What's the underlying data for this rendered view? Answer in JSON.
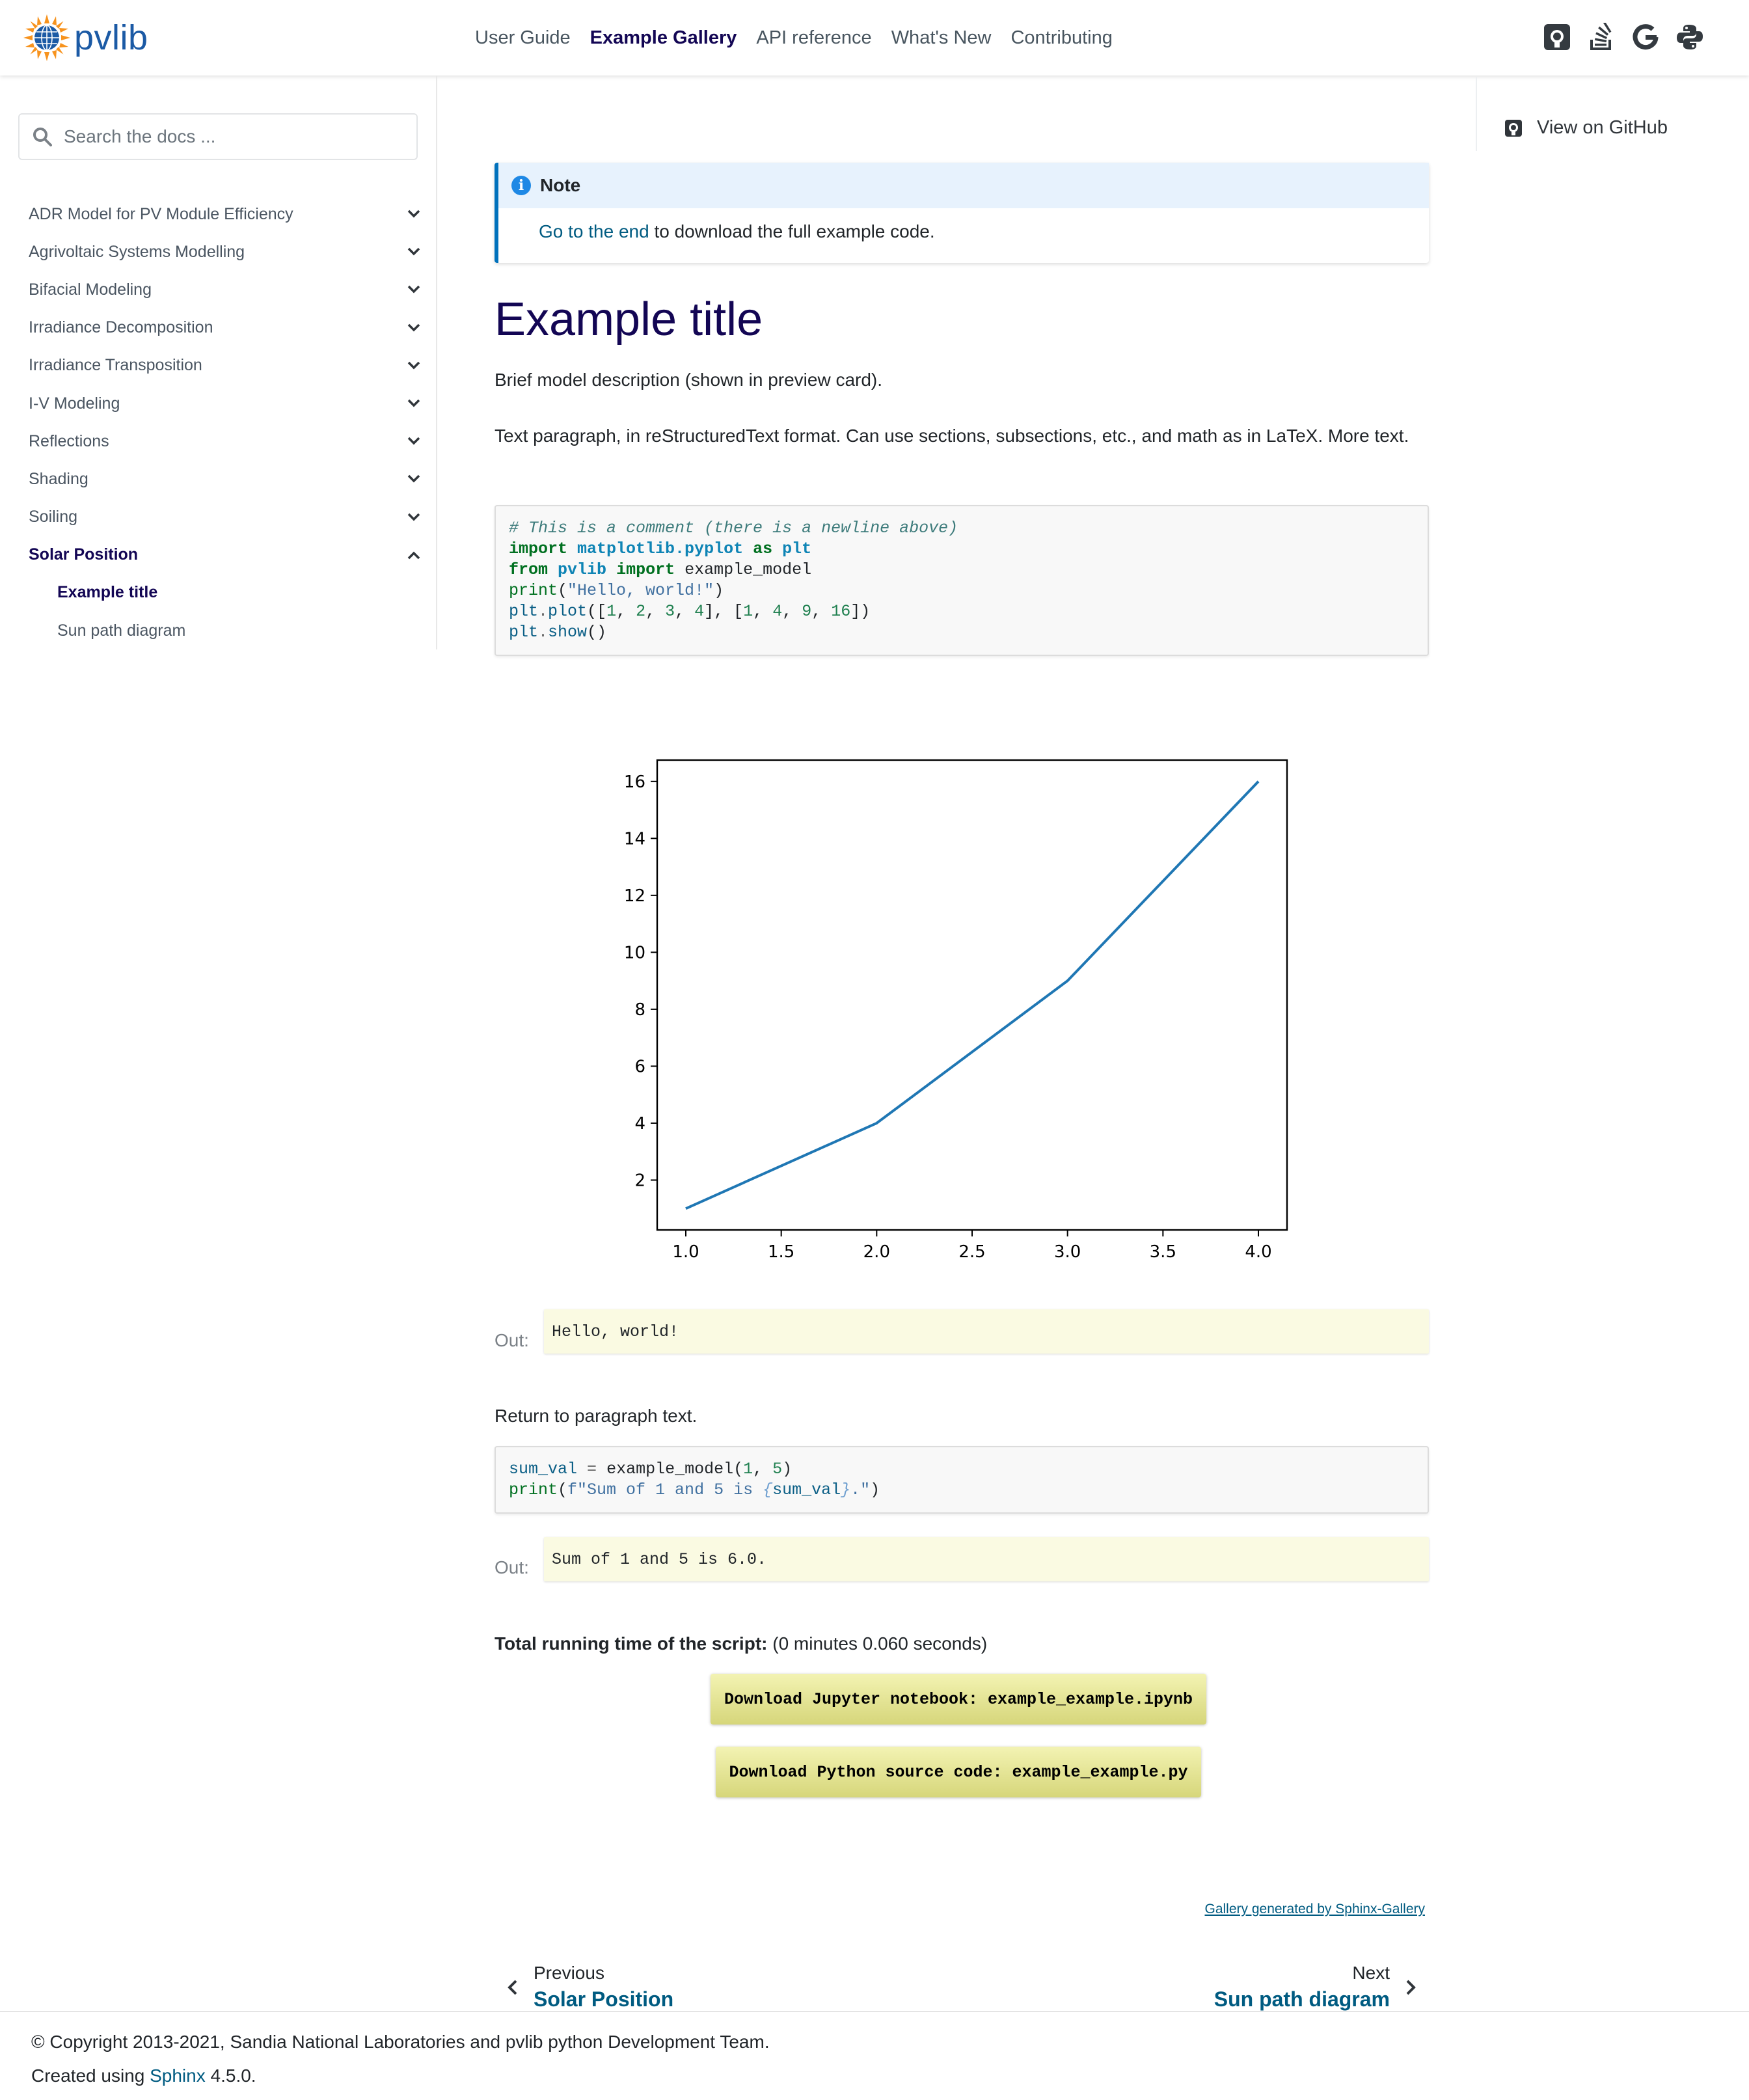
{
  "navbar": {
    "logo_text": "pvlib",
    "links": [
      "User Guide",
      "Example Gallery",
      "API reference",
      "What's New",
      "Contributing"
    ],
    "active_link": "Example Gallery",
    "icons": [
      "github-icon",
      "stackoverflow-icon",
      "google-groups-icon",
      "python-icon"
    ]
  },
  "sidebar": {
    "search_placeholder": "Search the docs ...",
    "items": [
      {
        "label": "ADR Model for PV Module Efficiency"
      },
      {
        "label": "Agrivoltaic Systems Modelling"
      },
      {
        "label": "Bifacial Modeling"
      },
      {
        "label": "Irradiance Decomposition"
      },
      {
        "label": "Irradiance Transposition"
      },
      {
        "label": "I-V Modeling"
      },
      {
        "label": "Reflections"
      },
      {
        "label": "Shading"
      },
      {
        "label": "Soiling"
      },
      {
        "label": "Solar Position"
      }
    ],
    "subitems": [
      {
        "label": "Example title"
      },
      {
        "label": "Sun path diagram"
      }
    ]
  },
  "right_toc": {
    "github_label": "View on GitHub"
  },
  "note": {
    "title": "Note",
    "link_text": "Go to the end",
    "text": " to download the full example code."
  },
  "content": {
    "title": "Example title",
    "description": "Brief model description (shown in preview card).",
    "paragraph": "Text paragraph, in reStructuredText format. Can use sections, subsections, etc., and math as in LaTeX. More text.",
    "return_text": "Return to paragraph text.",
    "output1": "Hello, world!",
    "output2": "Sum of 1 and 5 is 6.0.",
    "out_label": "Out:",
    "runtime_label": "Total running time of the script:",
    "runtime_value": " (0 minutes 0.060 seconds)",
    "download_notebook": "Download Jupyter notebook: example_example.ipynb",
    "download_python": "Download Python source code: example_example.py",
    "gallery_generated": "Gallery generated by Sphinx-Gallery"
  },
  "prev_next": {
    "prev_small": "Previous",
    "prev_title": "Solar Position",
    "next_small": "Next",
    "next_title": "Sun path diagram"
  },
  "footer": {
    "copyright": "© Copyright 2013-2021, Sandia National Laboratories and pvlib python Development Team.",
    "created_prefix": "Created using ",
    "created_link": "Sphinx",
    "created_suffix": " 4.5.0."
  },
  "chart_data": {
    "type": "line",
    "x": [
      1,
      2,
      3,
      4
    ],
    "series": [
      {
        "values": [
          1,
          4,
          9,
          16
        ],
        "color": "#1f77b4"
      }
    ],
    "xticks": [
      "1.0",
      "1.5",
      "2.0",
      "2.5",
      "3.0",
      "3.5",
      "4.0"
    ],
    "yticks": [
      "2",
      "4",
      "6",
      "8",
      "10",
      "12",
      "14",
      "16"
    ],
    "xlim": [
      0.85,
      4.15
    ],
    "ylim": [
      0.25,
      16.75
    ],
    "title": "",
    "xlabel": "",
    "ylabel": "",
    "grid": false
  }
}
